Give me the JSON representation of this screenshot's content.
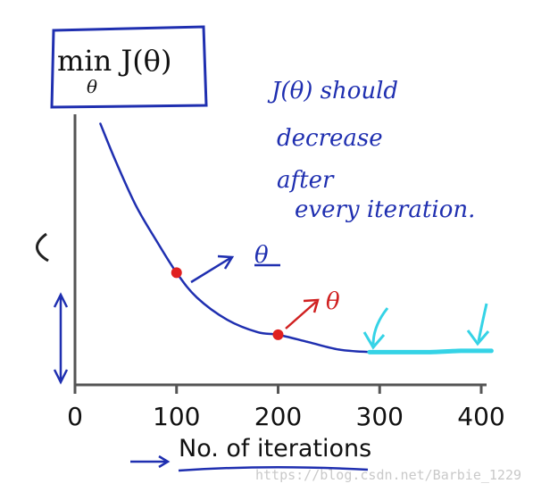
{
  "title": {
    "main": "min J(θ)",
    "sub": "θ"
  },
  "annotation": {
    "lines": [
      "J(θ) should",
      "decrease",
      "after",
      "every iteration."
    ],
    "theta_blue": "θ",
    "theta_red": "θ"
  },
  "watermark": "https://blog.csdn.net/Barbie_1229",
  "colors": {
    "curve": "#1f2fb0",
    "flat": "#35d3e6",
    "point": "#e02020",
    "red_ink": "#d02020",
    "axis": "#555555"
  },
  "chart_data": {
    "type": "line",
    "xlabel": "No. of iterations",
    "ylabel": "",
    "xlim": [
      0,
      420
    ],
    "x_ticks": [
      0,
      100,
      200,
      300,
      400
    ],
    "x_tick_labels": [
      "0",
      "100",
      "200",
      "300",
      "400"
    ],
    "ylim": [
      0,
      1
    ],
    "grid": false,
    "series": [
      {
        "x": [
          25,
          40,
          60,
          80,
          100,
          120,
          150,
          180,
          200,
          230,
          260,
          290
        ],
        "y": [
          0.98,
          0.83,
          0.65,
          0.51,
          0.38,
          0.28,
          0.19,
          0.14,
          0.13,
          0.1,
          0.07,
          0.06
        ]
      },
      {
        "x": [
          290,
          320,
          350,
          380,
          410
        ],
        "y": [
          0.06,
          0.06,
          0.06,
          0.065,
          0.065
        ]
      }
    ],
    "highlight_points": [
      {
        "x": 100,
        "y": 0.38
      },
      {
        "x": 200,
        "y": 0.13
      }
    ]
  }
}
